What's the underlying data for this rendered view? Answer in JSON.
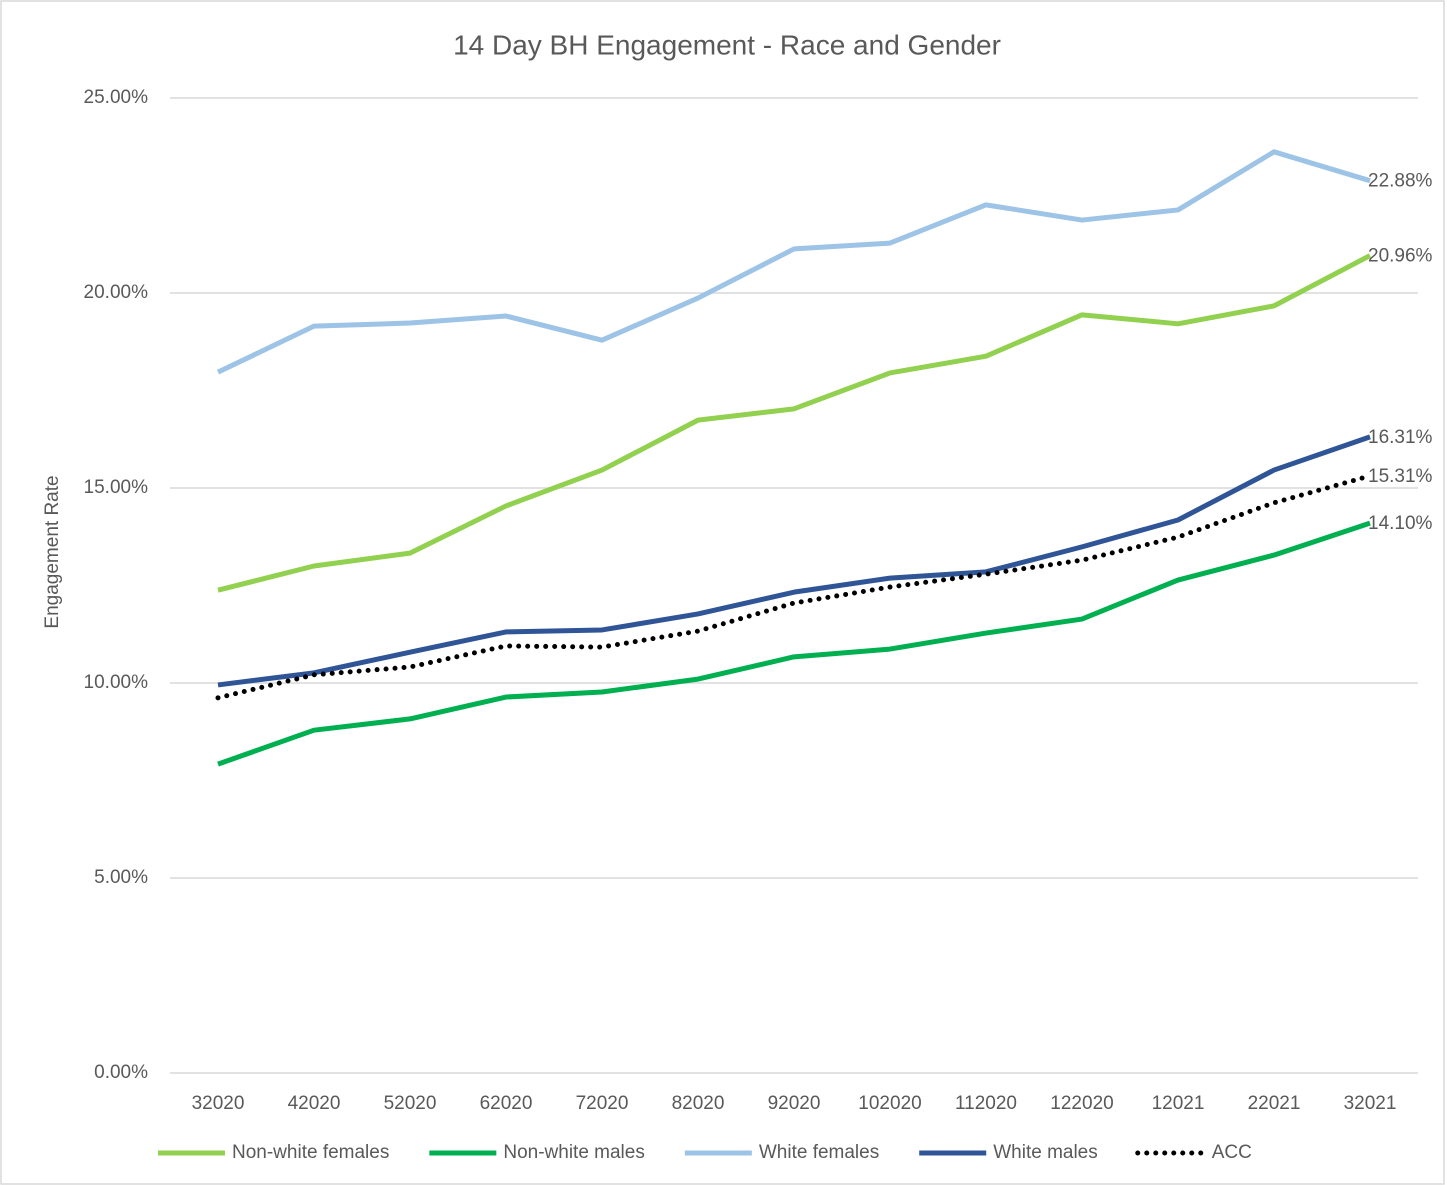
{
  "chart_data": {
    "type": "line",
    "title": "14 Day BH Engagement - Race and Gender",
    "y_label": "Engagement Rate",
    "categories": [
      "32020",
      "42020",
      "52020",
      "62020",
      "72020",
      "82020",
      "92020",
      "102020",
      "112020",
      "122020",
      "12021",
      "22021",
      "32021"
    ],
    "ylim": [
      0,
      25
    ],
    "yticks": [
      {
        "value": 0,
        "label": "0.00%"
      },
      {
        "value": 5,
        "label": "5.00%"
      },
      {
        "value": 10,
        "label": "10.00%"
      },
      {
        "value": 15,
        "label": "15.00%"
      },
      {
        "value": 20,
        "label": "20.00%"
      },
      {
        "value": 25,
        "label": "25.00%"
      }
    ],
    "grid": true,
    "legend": "bottom",
    "series": [
      {
        "name": "Non-white females",
        "color": "#92d050",
        "style": "solid",
        "values": [
          12.38,
          13.0,
          13.33,
          14.54,
          15.46,
          16.74,
          17.03,
          17.95,
          18.38,
          19.44,
          19.21,
          19.67,
          20.96
        ],
        "value_labels": [
          null,
          null,
          null,
          null,
          null,
          null,
          null,
          null,
          null,
          null,
          null,
          null,
          "20.96%"
        ]
      },
      {
        "name": "Non-white males",
        "color": "#00b050",
        "style": "solid",
        "values": [
          7.92,
          8.79,
          9.08,
          9.64,
          9.77,
          10.1,
          10.67,
          10.87,
          11.28,
          11.64,
          12.64,
          13.28,
          14.1
        ],
        "value_labels": [
          null,
          null,
          null,
          null,
          null,
          null,
          null,
          null,
          null,
          null,
          null,
          null,
          "14.10%"
        ]
      },
      {
        "name": "White females",
        "color": "#9dc3e6",
        "style": "solid",
        "values": [
          17.97,
          19.15,
          19.23,
          19.41,
          18.79,
          19.87,
          21.13,
          21.28,
          22.26,
          21.87,
          22.13,
          23.62,
          22.88
        ],
        "value_labels": [
          null,
          null,
          null,
          null,
          null,
          null,
          null,
          null,
          null,
          null,
          null,
          null,
          "22.88%"
        ]
      },
      {
        "name": "White males",
        "color": "#2f5597",
        "style": "solid",
        "values": [
          9.95,
          10.26,
          10.79,
          11.31,
          11.36,
          11.77,
          12.33,
          12.69,
          12.85,
          13.49,
          14.18,
          15.46,
          16.31
        ],
        "value_labels": [
          null,
          null,
          null,
          null,
          null,
          null,
          null,
          null,
          null,
          null,
          null,
          null,
          "16.31%"
        ]
      },
      {
        "name": "ACC",
        "color": "#000000",
        "style": "dotted",
        "values": [
          9.62,
          10.21,
          10.41,
          10.95,
          10.92,
          11.33,
          12.05,
          12.46,
          12.79,
          13.15,
          13.74,
          14.62,
          15.31
        ],
        "value_labels": [
          null,
          null,
          null,
          null,
          null,
          null,
          null,
          null,
          null,
          null,
          null,
          null,
          "15.31%"
        ]
      }
    ]
  }
}
